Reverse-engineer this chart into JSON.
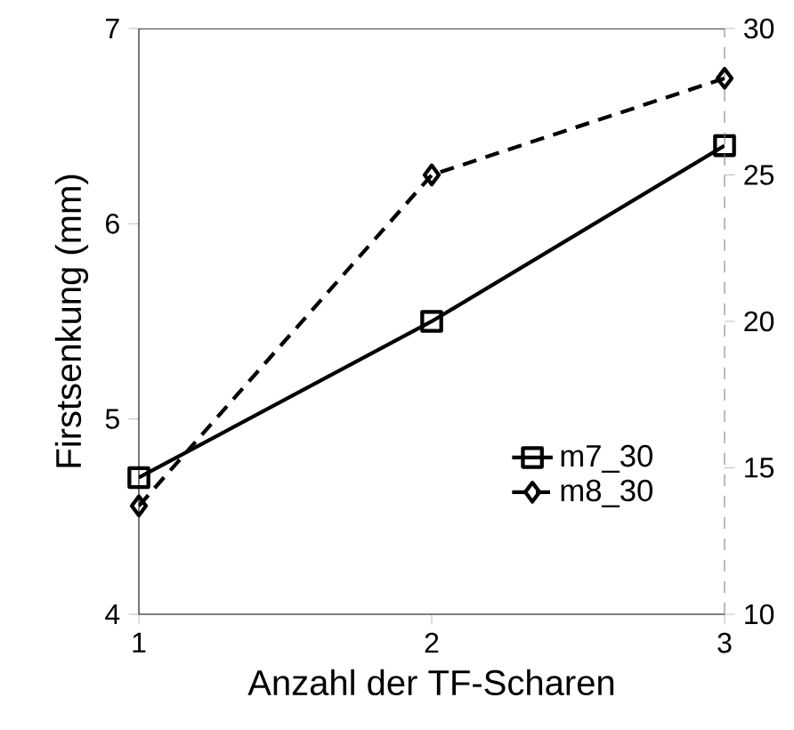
{
  "chart_data": {
    "type": "line",
    "xlabel": "Anzahl der TF-Scharen",
    "ylabel": "Firstsenkung (mm)",
    "x": [
      1,
      2,
      3
    ],
    "xlim": [
      1,
      3
    ],
    "xticks": [
      1,
      2,
      3
    ],
    "ylim": [
      4,
      7
    ],
    "yticks": [
      4,
      5,
      6,
      7
    ],
    "y2lim": [
      10,
      30
    ],
    "y2ticks": [
      10,
      15,
      20,
      25,
      30
    ],
    "series": [
      {
        "name": "m7_30",
        "color": "#000000",
        "values": [
          4.7,
          5.5,
          6.4
        ],
        "marker": "square",
        "line_style": "solid"
      },
      {
        "name": "m8_30",
        "color": "#000000",
        "values": [
          13.7,
          25.0,
          28.3
        ],
        "marker": "diamond",
        "line_style": "dashed",
        "axis": "y2"
      }
    ],
    "legend": "bottom right",
    "grid": false
  }
}
